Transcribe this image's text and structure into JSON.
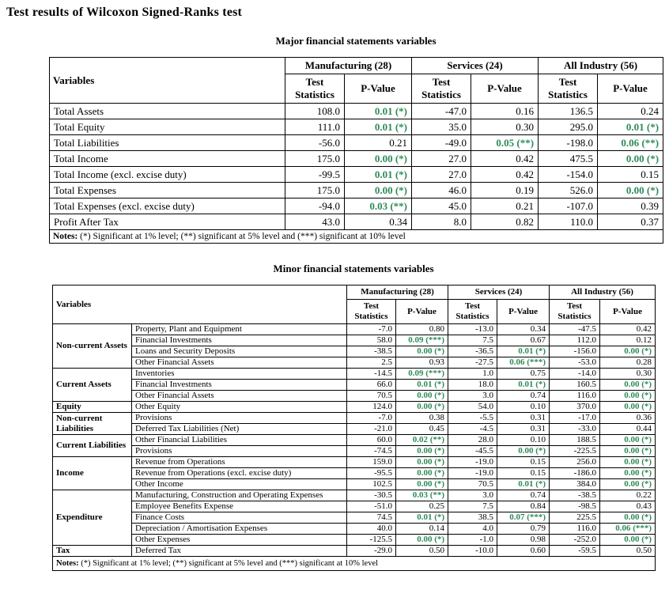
{
  "page_title": "Test results of Wilcoxon Signed-Ranks test",
  "colors": {
    "significant_text": "#2e8b57"
  },
  "major_table": {
    "caption": "Major financial statements variables",
    "variables_header": "Variables",
    "group_headers": [
      "Manufacturing (28)",
      "Services (24)",
      "All Industry (56)"
    ],
    "sub_headers": [
      "Test Statistics",
      "P-Value"
    ],
    "rows": [
      {
        "variable": "Total Assets",
        "values": [
          "108.0",
          "0.01 (*)",
          "-47.0",
          "0.16",
          "136.5",
          "0.24"
        ]
      },
      {
        "variable": "Total Equity",
        "values": [
          "111.0",
          "0.01 (*)",
          "35.0",
          "0.30",
          "295.0",
          "0.01 (*)"
        ]
      },
      {
        "variable": "Total Liabilities",
        "values": [
          "-56.0",
          "0.21",
          "-49.0",
          "0.05 (**)",
          "-198.0",
          "0.06 (**)"
        ]
      },
      {
        "variable": "Total Income",
        "values": [
          "175.0",
          "0.00 (*)",
          "27.0",
          "0.42",
          "475.5",
          "0.00 (*)"
        ]
      },
      {
        "variable": "Total Income (excl. excise duty)",
        "values": [
          "-99.5",
          "0.01 (*)",
          "27.0",
          "0.42",
          "-154.0",
          "0.15"
        ]
      },
      {
        "variable": "Total Expenses",
        "values": [
          "175.0",
          "0.00 (*)",
          "46.0",
          "0.19",
          "526.0",
          "0.00 (*)"
        ]
      },
      {
        "variable": "Total Expenses (excl. excise duty)",
        "values": [
          "-94.0",
          "0.03 (**)",
          "45.0",
          "0.21",
          "-107.0",
          "0.39"
        ]
      },
      {
        "variable": "Profit After Tax",
        "values": [
          "43.0",
          "0.34",
          "8.0",
          "0.82",
          "110.0",
          "0.37"
        ]
      }
    ],
    "notes_label": "Notes:",
    "notes_text": " (*) Significant at 1% level; (**) significant at 5% level and (***) significant at 10% level"
  },
  "minor_table": {
    "caption": "Minor financial statements variables",
    "variables_header": "Variables",
    "group_headers": [
      "Manufacturing (28)",
      "Services (24)",
      "All Industry (56)"
    ],
    "sub_headers": [
      "Test Statistics",
      "P-Value"
    ],
    "rows": [
      {
        "category": "Non-current Assets",
        "rowspan": 4,
        "variable": "Property, Plant and Equipment",
        "values": [
          "-7.0",
          "0.80",
          "-13.0",
          "0.34",
          "-47.5",
          "0.42"
        ]
      },
      {
        "variable": "Financial Investments",
        "values": [
          "58.0",
          "0.09 (***)",
          "7.5",
          "0.67",
          "112.0",
          "0.12"
        ]
      },
      {
        "variable": "Loans and Security Deposits",
        "values": [
          "-38.5",
          "0.00 (*)",
          "-36.5",
          "0.01 (*)",
          "-156.0",
          "0.00 (*)"
        ]
      },
      {
        "variable": "Other Financial Assets",
        "values": [
          "2.5",
          "0.93",
          "-27.5",
          "0.06 (***)",
          "-53.0",
          "0.28"
        ]
      },
      {
        "category": "Current Assets",
        "rowspan": 3,
        "variable": "Inventories",
        "values": [
          "-14.5",
          "0.09 (***)",
          "1.0",
          "0.75",
          "-14.0",
          "0.30"
        ]
      },
      {
        "variable": "Financial Investments",
        "values": [
          "66.0",
          "0.01 (*)",
          "18.0",
          "0.01 (*)",
          "160.5",
          "0.00 (*)"
        ]
      },
      {
        "variable": "Other Financial Assets",
        "values": [
          "70.5",
          "0.00 (*)",
          "3.0",
          "0.74",
          "116.0",
          "0.00 (*)"
        ]
      },
      {
        "category": "Equity",
        "rowspan": 1,
        "variable": "Other Equity",
        "values": [
          "124.0",
          "0.00 (*)",
          "54.0",
          "0.10",
          "370.0",
          "0.00 (*)"
        ]
      },
      {
        "category": "Non-current Liabilities",
        "rowspan": 2,
        "variable": "Provisions",
        "values": [
          "-7.0",
          "0.38",
          "-5.5",
          "0.31",
          "-17.0",
          "0.36"
        ]
      },
      {
        "variable": "Deferred Tax Liabilities (Net)",
        "values": [
          "-21.0",
          "0.45",
          "-4.5",
          "0.31",
          "-33.0",
          "0.44"
        ]
      },
      {
        "category": "Current Liabilities",
        "rowspan": 2,
        "variable": "Other Financial Liabilities",
        "values": [
          "60.0",
          "0.02 (**)",
          "28.0",
          "0.10",
          "188.5",
          "0.00 (*)"
        ]
      },
      {
        "variable": "Provisions",
        "values": [
          "-74.5",
          "0.00 (*)",
          "-45.5",
          "0.00 (*)",
          "-225.5",
          "0.00 (*)"
        ]
      },
      {
        "category": "Income",
        "rowspan": 3,
        "variable": "Revenue from Operations",
        "values": [
          "159.0",
          "0.00 (*)",
          "-19.0",
          "0.15",
          "256.0",
          "0.00 (*)"
        ]
      },
      {
        "variable": "Revenue from Operations (excl. excise duty)",
        "values": [
          "-95.5",
          "0.00 (*)",
          "-19.0",
          "0.15",
          "-186.0",
          "0.00 (*)"
        ]
      },
      {
        "variable": "Other Income",
        "values": [
          "102.5",
          "0.00 (*)",
          "70.5",
          "0.01 (*)",
          "384.0",
          "0.00 (*)"
        ]
      },
      {
        "category": "Expenditure",
        "rowspan": 5,
        "variable": "Manufacturing, Construction and Operating Expenses",
        "values": [
          "-30.5",
          "0.03 (**)",
          "3.0",
          "0.74",
          "-38.5",
          "0.22"
        ]
      },
      {
        "variable": "Employee Benefits Expense",
        "values": [
          "-51.0",
          "0.25",
          "7.5",
          "0.84",
          "-98.5",
          "0.43"
        ]
      },
      {
        "variable": "Finance Costs",
        "values": [
          "74.5",
          "0.01 (*)",
          "38.5",
          "0.07 (***)",
          "225.5",
          "0.00 (*)"
        ]
      },
      {
        "variable": "Depreciation / Amortisation Expenses",
        "values": [
          "40.0",
          "0.14",
          "4.0",
          "0.79",
          "116.0",
          "0.06 (***)"
        ]
      },
      {
        "variable": "Other Expenses",
        "values": [
          "-125.5",
          "0.00 (*)",
          "-1.0",
          "0.98",
          "-252.0",
          "0.00 (*)"
        ]
      },
      {
        "category": "Tax",
        "rowspan": 1,
        "variable": "Deferred Tax",
        "values": [
          "-29.0",
          "0.50",
          "-10.0",
          "0.60",
          "-59.5",
          "0.50"
        ]
      }
    ],
    "notes_label": "Notes:",
    "notes_text": " (*) Significant at 1% level; (**) significant at 5% level and (***) significant at 10% level"
  }
}
